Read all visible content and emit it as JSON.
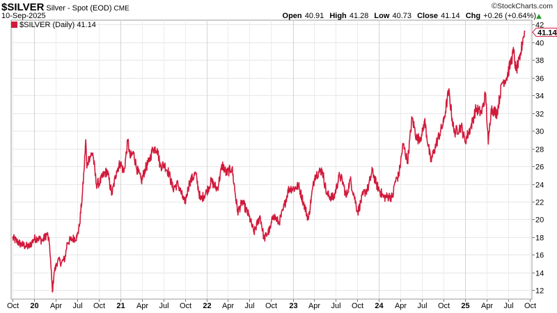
{
  "header": {
    "symbol": "$SILVER",
    "description": "Silver - Spot (EOD)",
    "exchange": "CME",
    "date": "10-Sep-2025",
    "brand": "StockCharts.com",
    "copyright": "©",
    "open_label": "Open",
    "open_value": "40.91",
    "high_label": "High",
    "high_value": "41.28",
    "low_label": "Low",
    "low_value": "40.73",
    "close_label": "Close",
    "close_value": "41.14",
    "chg_label": "Chg",
    "chg_value": "+0.26 (+0.64%)",
    "up_color": "#2ca02c"
  },
  "legend": {
    "label": "$SILVER (Daily) 41.14",
    "color": "#d11a3b"
  },
  "chart_data": {
    "type": "line",
    "title": "$SILVER",
    "series": [
      {
        "name": "$SILVER (Daily)",
        "color": "#d11a3b",
        "points": [
          [
            "2019-10-01",
            17.9
          ],
          [
            "2019-10-20",
            17.5
          ],
          [
            "2019-11-05",
            17.2
          ],
          [
            "2019-11-25",
            17.0
          ],
          [
            "2019-12-10",
            16.9
          ],
          [
            "2019-12-31",
            17.8
          ],
          [
            "2020-01-15",
            17.9
          ],
          [
            "2020-02-05",
            17.6
          ],
          [
            "2020-02-25",
            18.4
          ],
          [
            "2020-03-06",
            17.1
          ],
          [
            "2020-03-12",
            14.5
          ],
          [
            "2020-03-18",
            11.8
          ],
          [
            "2020-03-25",
            14.0
          ],
          [
            "2020-04-10",
            15.4
          ],
          [
            "2020-04-25",
            15.1
          ],
          [
            "2020-05-10",
            15.6
          ],
          [
            "2020-05-20",
            17.4
          ],
          [
            "2020-06-10",
            17.8
          ],
          [
            "2020-06-30",
            18.0
          ],
          [
            "2020-07-10",
            19.2
          ],
          [
            "2020-07-22",
            22.5
          ],
          [
            "2020-07-30",
            25.5
          ],
          [
            "2020-08-06",
            29.0
          ],
          [
            "2020-08-11",
            25.8
          ],
          [
            "2020-08-20",
            27.0
          ],
          [
            "2020-09-05",
            27.5
          ],
          [
            "2020-09-20",
            24.0
          ],
          [
            "2020-10-05",
            24.2
          ],
          [
            "2020-10-20",
            25.0
          ],
          [
            "2020-11-05",
            25.5
          ],
          [
            "2020-11-25",
            22.8
          ],
          [
            "2020-12-15",
            25.5
          ],
          [
            "2020-12-31",
            26.4
          ],
          [
            "2021-01-15",
            25.3
          ],
          [
            "2021-02-01",
            29.0
          ],
          [
            "2021-02-10",
            27.0
          ],
          [
            "2021-02-25",
            27.5
          ],
          [
            "2021-03-10",
            25.8
          ],
          [
            "2021-03-30",
            24.3
          ],
          [
            "2021-04-15",
            25.7
          ],
          [
            "2021-05-01",
            26.5
          ],
          [
            "2021-05-18",
            28.0
          ],
          [
            "2021-06-05",
            28.0
          ],
          [
            "2021-06-18",
            26.0
          ],
          [
            "2021-07-05",
            26.2
          ],
          [
            "2021-07-25",
            25.2
          ],
          [
            "2021-08-10",
            23.5
          ],
          [
            "2021-09-01",
            24.0
          ],
          [
            "2021-09-30",
            21.8
          ],
          [
            "2021-10-20",
            24.2
          ],
          [
            "2021-11-15",
            25.2
          ],
          [
            "2021-12-05",
            22.2
          ],
          [
            "2021-12-31",
            23.1
          ],
          [
            "2022-01-20",
            24.3
          ],
          [
            "2022-02-15",
            23.4
          ],
          [
            "2022-03-08",
            26.2
          ],
          [
            "2022-03-25",
            25.2
          ],
          [
            "2022-04-18",
            25.8
          ],
          [
            "2022-05-12",
            20.8
          ],
          [
            "2022-06-01",
            22.0
          ],
          [
            "2022-06-30",
            20.3
          ],
          [
            "2022-07-20",
            18.5
          ],
          [
            "2022-08-15",
            20.4
          ],
          [
            "2022-09-01",
            17.8
          ],
          [
            "2022-09-28",
            19.0
          ],
          [
            "2022-10-10",
            20.5
          ],
          [
            "2022-11-03",
            19.6
          ],
          [
            "2022-11-20",
            21.0
          ],
          [
            "2022-12-15",
            23.5
          ],
          [
            "2023-01-05",
            23.5
          ],
          [
            "2023-01-25",
            23.8
          ],
          [
            "2023-02-15",
            21.9
          ],
          [
            "2023-03-08",
            20.0
          ],
          [
            "2023-03-20",
            22.5
          ],
          [
            "2023-04-05",
            25.0
          ],
          [
            "2023-05-05",
            25.6
          ],
          [
            "2023-05-25",
            22.8
          ],
          [
            "2023-06-23",
            22.4
          ],
          [
            "2023-07-18",
            25.0
          ],
          [
            "2023-08-01",
            24.2
          ],
          [
            "2023-08-15",
            22.5
          ],
          [
            "2023-09-01",
            24.5
          ],
          [
            "2023-09-15",
            23.0
          ],
          [
            "2023-10-03",
            20.8
          ],
          [
            "2023-10-25",
            22.8
          ],
          [
            "2023-11-15",
            23.5
          ],
          [
            "2023-12-04",
            25.5
          ],
          [
            "2023-12-20",
            24.0
          ],
          [
            "2024-01-20",
            22.5
          ],
          [
            "2024-02-15",
            22.6
          ],
          [
            "2024-02-28",
            22.5
          ],
          [
            "2024-03-08",
            24.2
          ],
          [
            "2024-03-25",
            25.0
          ],
          [
            "2024-04-12",
            28.5
          ],
          [
            "2024-05-01",
            26.5
          ],
          [
            "2024-05-20",
            31.5
          ],
          [
            "2024-06-10",
            29.0
          ],
          [
            "2024-07-01",
            29.5
          ],
          [
            "2024-07-12",
            31.2
          ],
          [
            "2024-08-07",
            26.5
          ],
          [
            "2024-08-30",
            28.5
          ],
          [
            "2024-10-01",
            31.0
          ],
          [
            "2024-10-22",
            34.5
          ],
          [
            "2024-11-14",
            29.8
          ],
          [
            "2024-12-15",
            30.5
          ],
          [
            "2024-12-30",
            28.8
          ],
          [
            "2025-01-25",
            30.5
          ],
          [
            "2025-02-15",
            32.5
          ],
          [
            "2025-03-10",
            32.0
          ],
          [
            "2025-03-28",
            34.2
          ],
          [
            "2025-04-08",
            28.5
          ],
          [
            "2025-04-20",
            32.5
          ],
          [
            "2025-05-15",
            32.0
          ],
          [
            "2025-06-06",
            35.5
          ],
          [
            "2025-06-25",
            36.0
          ],
          [
            "2025-07-10",
            37.5
          ],
          [
            "2025-07-25",
            39.0
          ],
          [
            "2025-08-03",
            36.8
          ],
          [
            "2025-08-20",
            38.0
          ],
          [
            "2025-09-02",
            40.5
          ],
          [
            "2025-09-10",
            41.14
          ]
        ]
      }
    ],
    "x_ticks": [
      {
        "date": "2019-10-01",
        "label": "Oct"
      },
      {
        "date": "2020-01-01",
        "label": "20",
        "bold": true
      },
      {
        "date": "2020-04-01",
        "label": "Apr"
      },
      {
        "date": "2020-07-01",
        "label": "Jul"
      },
      {
        "date": "2020-10-01",
        "label": "Oct"
      },
      {
        "date": "2021-01-01",
        "label": "21",
        "bold": true
      },
      {
        "date": "2021-04-01",
        "label": "Apr"
      },
      {
        "date": "2021-07-01",
        "label": "Jul"
      },
      {
        "date": "2021-10-01",
        "label": "Oct"
      },
      {
        "date": "2022-01-01",
        "label": "22",
        "bold": true
      },
      {
        "date": "2022-04-01",
        "label": "Apr"
      },
      {
        "date": "2022-07-01",
        "label": "Jul"
      },
      {
        "date": "2022-10-01",
        "label": "Oct"
      },
      {
        "date": "2023-01-01",
        "label": "23",
        "bold": true
      },
      {
        "date": "2023-04-01",
        "label": "Apr"
      },
      {
        "date": "2023-07-01",
        "label": "Jul"
      },
      {
        "date": "2023-10-01",
        "label": "Oct"
      },
      {
        "date": "2024-01-01",
        "label": "24",
        "bold": true
      },
      {
        "date": "2024-04-01",
        "label": "Apr"
      },
      {
        "date": "2024-07-01",
        "label": "Jul"
      },
      {
        "date": "2024-10-01",
        "label": "Oct"
      },
      {
        "date": "2025-01-01",
        "label": "25",
        "bold": true
      },
      {
        "date": "2025-04-01",
        "label": "Apr"
      },
      {
        "date": "2025-07-01",
        "label": "Jul"
      },
      {
        "date": "2025-10-01",
        "label": "Oct"
      }
    ],
    "y_ticks": [
      12,
      14,
      16,
      18,
      20,
      22,
      24,
      26,
      28,
      30,
      32,
      34,
      36,
      38,
      40,
      42
    ],
    "x_range": [
      "2019-09-25",
      "2025-10-10"
    ],
    "ylim": [
      11,
      42.5
    ],
    "y_axis_side": "right",
    "last_value_label": "41.14",
    "grid": true
  }
}
